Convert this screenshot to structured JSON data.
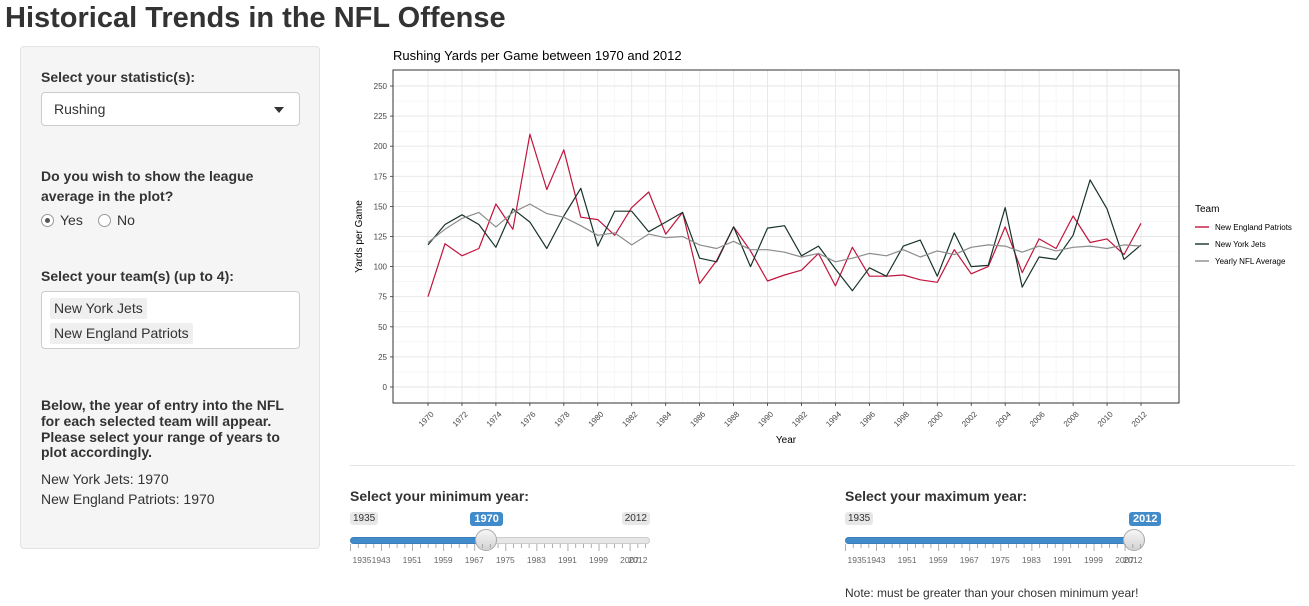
{
  "page": {
    "title": "Historical Trends in the NFL Offense"
  },
  "sidebar": {
    "statistic_label": "Select your statistic(s):",
    "statistic_value": "Rushing",
    "league_avg_label_line1": "Do you wish to show the league",
    "league_avg_label_line2": "average in the plot?",
    "radio_yes": "Yes",
    "radio_no": "No",
    "radio_selected": "Yes",
    "teams_label": "Select your team(s) (up to 4):",
    "teams_selected": [
      "New York Jets",
      "New England Patriots"
    ],
    "entry_text_line1": "Below, the year of entry into the NFL",
    "entry_text_line2": "for each selected team will appear.",
    "entry_text_line3": "Please select your range of years to",
    "entry_text_line4": "plot accordingly.",
    "entry_jets": "New York Jets: 1970",
    "entry_patriots": "New England Patriots: 1970"
  },
  "sliders": {
    "min": {
      "label": "Select your minimum year:",
      "min": 1935,
      "max": 2012,
      "value": 1970,
      "min_text": "1935",
      "max_text": "2012",
      "value_text": "1970",
      "tick_labels": [
        "1935",
        "1943",
        "1951",
        "1959",
        "1967",
        "1975",
        "1983",
        "1991",
        "1999",
        "2007",
        "2012"
      ]
    },
    "max": {
      "label": "Select your maximum year:",
      "min": 1935,
      "max": 2012,
      "value": 2012,
      "min_text": "1935",
      "value_text": "2012",
      "tick_labels": [
        "1935",
        "1943",
        "1951",
        "1959",
        "1967",
        "1975",
        "1983",
        "1991",
        "1999",
        "2007",
        "2012"
      ]
    },
    "note": "Note: must be greater than your chosen minimum year!"
  },
  "chart_data": {
    "type": "line",
    "title": "Rushing Yards per Game between 1970 and 2012",
    "xlabel": "Year",
    "ylabel": "Yards per Game",
    "xlim": [
      1970,
      2012
    ],
    "ylim": [
      0,
      250
    ],
    "y_ticks": [
      0,
      25,
      50,
      75,
      100,
      125,
      150,
      175,
      200,
      225,
      250
    ],
    "x_ticks": [
      1970,
      1972,
      1974,
      1976,
      1978,
      1980,
      1982,
      1984,
      1986,
      1988,
      1990,
      1992,
      1994,
      1996,
      1998,
      2000,
      2002,
      2004,
      2006,
      2008,
      2010,
      2012
    ],
    "grid": true,
    "legend_title": "Team",
    "legend_position": "right",
    "x": [
      1970,
      1971,
      1972,
      1973,
      1974,
      1975,
      1976,
      1977,
      1978,
      1979,
      1980,
      1981,
      1982,
      1983,
      1984,
      1985,
      1986,
      1987,
      1988,
      1989,
      1990,
      1991,
      1992,
      1993,
      1994,
      1995,
      1996,
      1997,
      1998,
      1999,
      2000,
      2001,
      2002,
      2003,
      2004,
      2005,
      2006,
      2007,
      2008,
      2009,
      2010,
      2011,
      2012
    ],
    "series": [
      {
        "name": "New England Patriots",
        "color": "#c1143c",
        "values": [
          75,
          119,
          109,
          115,
          152,
          131,
          210,
          164,
          197,
          141,
          139,
          126,
          149,
          162,
          127,
          145,
          86,
          105,
          133,
          113,
          88,
          93,
          97,
          111,
          84,
          116,
          92,
          92,
          93,
          89,
          87,
          114,
          94,
          100,
          133,
          95,
          123,
          115,
          142,
          120,
          123,
          110,
          136
        ]
      },
      {
        "name": "New York Jets",
        "color": "#18332a",
        "values": [
          118,
          135,
          143,
          135,
          116,
          148,
          137,
          115,
          142,
          165,
          117,
          146,
          146,
          129,
          137,
          145,
          107,
          104,
          133,
          100,
          132,
          134,
          109,
          117,
          98,
          80,
          99,
          92,
          117,
          122,
          92,
          128,
          100,
          101,
          149,
          83,
          108,
          106,
          126,
          172,
          148,
          106,
          118
        ]
      },
      {
        "name": "Yearly NFL Average",
        "color": "#8c8c8c",
        "values": [
          120,
          131,
          140,
          145,
          133,
          145,
          152,
          144,
          141,
          134,
          126,
          128,
          118,
          127,
          124,
          125,
          118,
          115,
          121,
          114,
          114,
          112,
          108,
          111,
          104,
          107,
          111,
          109,
          114,
          108,
          113,
          110,
          116,
          118,
          117,
          112,
          117,
          113,
          116,
          117,
          115,
          118,
          117
        ]
      }
    ]
  }
}
